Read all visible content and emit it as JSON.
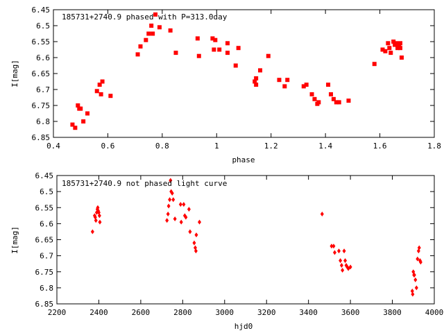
{
  "chart_data": [
    {
      "type": "scatter",
      "title": "185731+2740.9 phased with P=313.0day",
      "xlabel": "phase",
      "ylabel": "I[mag]",
      "xlim": [
        0.4,
        1.8
      ],
      "ylim": [
        6.85,
        6.45
      ],
      "y_inverted": true,
      "grid": false,
      "xticks": [
        "0.4",
        "0.6",
        "0.8",
        "1",
        "1.2",
        "1.4",
        "1.6",
        "1.8"
      ],
      "yticks": [
        "6.45",
        "6.5",
        "6.55",
        "6.6",
        "6.65",
        "6.7",
        "6.75",
        "6.8",
        "6.85"
      ],
      "marker": "filled-square",
      "color": "#ff0000",
      "series": [
        {
          "points": [
            [
              0.47,
              6.81
            ],
            [
              0.48,
              6.82
            ],
            [
              0.49,
              6.75
            ],
            [
              0.495,
              6.76
            ],
            [
              0.5,
              6.76
            ],
            [
              0.51,
              6.8
            ],
            [
              0.525,
              6.775
            ],
            [
              0.56,
              6.705
            ],
            [
              0.57,
              6.685
            ],
            [
              0.575,
              6.715
            ],
            [
              0.58,
              6.675
            ],
            [
              0.61,
              6.72
            ],
            [
              0.71,
              6.59
            ],
            [
              0.72,
              6.565
            ],
            [
              0.74,
              6.545
            ],
            [
              0.75,
              6.525
            ],
            [
              0.76,
              6.5
            ],
            [
              0.765,
              6.525
            ],
            [
              0.775,
              6.465
            ],
            [
              0.79,
              6.505
            ],
            [
              0.83,
              6.515
            ],
            [
              0.85,
              6.585
            ],
            [
              0.93,
              6.54
            ],
            [
              0.935,
              6.595
            ],
            [
              0.985,
              6.54
            ],
            [
              0.99,
              6.575
            ],
            [
              0.995,
              6.545
            ],
            [
              1.01,
              6.575
            ],
            [
              1.04,
              6.555
            ],
            [
              1.04,
              6.585
            ],
            [
              1.07,
              6.625
            ],
            [
              1.08,
              6.57
            ],
            [
              1.14,
              6.675
            ],
            [
              1.145,
              6.665
            ],
            [
              1.145,
              6.685
            ],
            [
              1.16,
              6.64
            ],
            [
              1.19,
              6.595
            ],
            [
              1.23,
              6.67
            ],
            [
              1.25,
              6.69
            ],
            [
              1.26,
              6.67
            ],
            [
              1.32,
              6.69
            ],
            [
              1.33,
              6.685
            ],
            [
              1.35,
              6.715
            ],
            [
              1.36,
              6.73
            ],
            [
              1.37,
              6.745
            ],
            [
              1.375,
              6.74
            ],
            [
              1.41,
              6.685
            ],
            [
              1.42,
              6.715
            ],
            [
              1.43,
              6.73
            ],
            [
              1.44,
              6.74
            ],
            [
              1.45,
              6.74
            ],
            [
              1.485,
              6.735
            ],
            [
              1.58,
              6.62
            ],
            [
              1.61,
              6.575
            ],
            [
              1.62,
              6.58
            ],
            [
              1.63,
              6.555
            ],
            [
              1.635,
              6.57
            ],
            [
              1.64,
              6.585
            ],
            [
              1.65,
              6.55
            ],
            [
              1.655,
              6.56
            ],
            [
              1.66,
              6.555
            ],
            [
              1.665,
              6.57
            ],
            [
              1.67,
              6.565
            ],
            [
              1.675,
              6.555
            ],
            [
              1.675,
              6.57
            ],
            [
              1.68,
              6.6
            ]
          ]
        }
      ]
    },
    {
      "type": "scatter",
      "title": "185731+2740.9 not phased light curve",
      "xlabel": "hjd0",
      "ylabel": "I[mag]",
      "xlim": [
        2200,
        4000
      ],
      "ylim": [
        6.85,
        6.45
      ],
      "y_inverted": true,
      "grid": false,
      "xticks": [
        "2200",
        "2400",
        "2600",
        "2800",
        "3000",
        "3200",
        "3400",
        "3600",
        "3800",
        "4000"
      ],
      "yticks": [
        "6.45",
        "6.5",
        "6.55",
        "6.6",
        "6.65",
        "6.7",
        "6.75",
        "6.8",
        "6.85"
      ],
      "marker": "filled-diamond",
      "color": "#ff0000",
      "series": [
        {
          "points": [
            [
              2370,
              6.625
            ],
            [
              2380,
              6.575
            ],
            [
              2383,
              6.58
            ],
            [
              2386,
              6.59
            ],
            [
              2390,
              6.565
            ],
            [
              2393,
              6.555
            ],
            [
              2395,
              6.55
            ],
            [
              2397,
              6.56
            ],
            [
              2400,
              6.565
            ],
            [
              2403,
              6.575
            ],
            [
              2405,
              6.595
            ],
            [
              2725,
              6.59
            ],
            [
              2730,
              6.57
            ],
            [
              2733,
              6.545
            ],
            [
              2738,
              6.525
            ],
            [
              2742,
              6.465
            ],
            [
              2745,
              6.5
            ],
            [
              2750,
              6.505
            ],
            [
              2755,
              6.525
            ],
            [
              2763,
              6.585
            ],
            [
              2790,
              6.54
            ],
            [
              2793,
              6.595
            ],
            [
              2805,
              6.54
            ],
            [
              2810,
              6.575
            ],
            [
              2815,
              6.58
            ],
            [
              2830,
              6.555
            ],
            [
              2835,
              6.625
            ],
            [
              2855,
              6.66
            ],
            [
              2860,
              6.675
            ],
            [
              2863,
              6.685
            ],
            [
              2865,
              6.635
            ],
            [
              2880,
              6.595
            ],
            [
              3465,
              6.57
            ],
            [
              3510,
              6.67
            ],
            [
              3520,
              6.67
            ],
            [
              3525,
              6.69
            ],
            [
              3545,
              6.685
            ],
            [
              3552,
              6.715
            ],
            [
              3558,
              6.73
            ],
            [
              3562,
              6.745
            ],
            [
              3570,
              6.685
            ],
            [
              3575,
              6.715
            ],
            [
              3580,
              6.73
            ],
            [
              3585,
              6.735
            ],
            [
              3590,
              6.74
            ],
            [
              3600,
              6.735
            ],
            [
              3895,
              6.81
            ],
            [
              3897,
              6.82
            ],
            [
              3900,
              6.75
            ],
            [
              3903,
              6.76
            ],
            [
              3905,
              6.76
            ],
            [
              3910,
              6.775
            ],
            [
              3915,
              6.8
            ],
            [
              3920,
              6.71
            ],
            [
              3925,
              6.685
            ],
            [
              3928,
              6.675
            ],
            [
              3932,
              6.715
            ],
            [
              3935,
              6.72
            ]
          ]
        }
      ]
    }
  ]
}
